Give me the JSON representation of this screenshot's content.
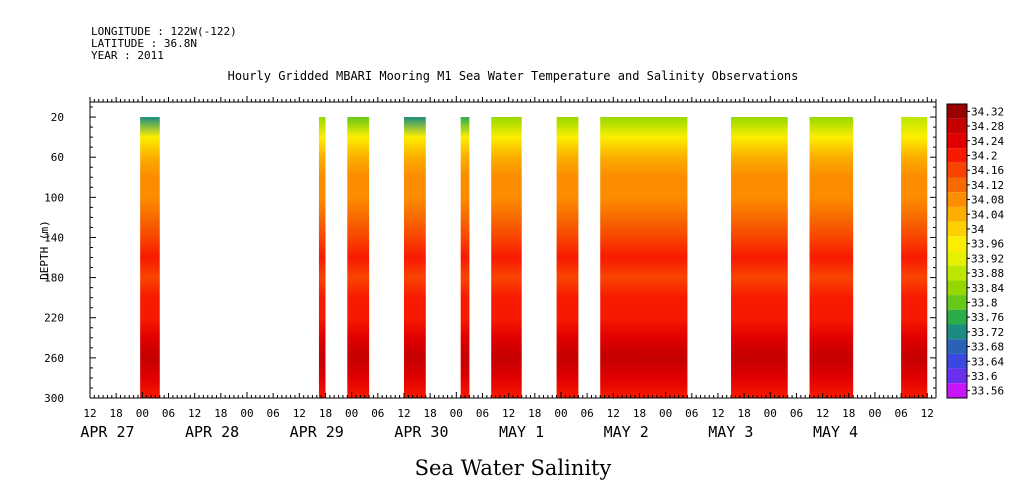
{
  "header": {
    "longitude": "LONGITUDE : 122W(-122)",
    "latitude": "LATITUDE : 36.8N",
    "year": "YEAR : 2011"
  },
  "chart_data": {
    "type": "heatmap",
    "title": "Hourly Gridded MBARI Mooring M1 Sea Water Temperature and Salinity Observations",
    "xlabel": "Sea Water Salinity",
    "ylabel": "DEPTH (m)",
    "y_ticks": [
      20,
      60,
      100,
      140,
      180,
      220,
      260,
      300
    ],
    "ylim": [
      300,
      5
    ],
    "hour_ticks": [
      "12",
      "18",
      "00",
      "06",
      "12",
      "18",
      "00",
      "06",
      "12",
      "18",
      "00",
      "06",
      "12",
      "18",
      "00",
      "06",
      "12",
      "18",
      "00",
      "06",
      "12",
      "18",
      "00",
      "06",
      "12",
      "18",
      "00",
      "06",
      "12",
      "18",
      "00",
      "06",
      "12"
    ],
    "day_labels": [
      "APR 27",
      "APR 28",
      "APR 29",
      "APR 30",
      "MAY  1",
      "MAY  2",
      "MAY  3",
      "MAY  4"
    ],
    "colorbar_labels": [
      "34.32",
      "34.28",
      "34.24",
      "34.2",
      "34.16",
      "34.12",
      "34.08",
      "34.04",
      "34",
      "33.96",
      "33.92",
      "33.88",
      "33.84",
      "33.8",
      "33.76",
      "33.72",
      "33.68",
      "33.64",
      "33.6",
      "33.56"
    ],
    "colorbar_colors": [
      "#9a0000",
      "#c40000",
      "#e00000",
      "#f81a00",
      "#f84400",
      "#f86a00",
      "#fc8c00",
      "#fcae00",
      "#fcd000",
      "#fcee00",
      "#e6f000",
      "#bde600",
      "#94d800",
      "#66c818",
      "#2cad4a",
      "#1c8c80",
      "#2a62b8",
      "#3a48e0",
      "#6a30f0",
      "#c814f8"
    ],
    "segments": [
      {
        "start": "2011-04-26T23:30",
        "end": "2011-04-27T04:00",
        "surface_salinity": 33.7
      },
      {
        "start": "2011-04-28T16:30",
        "end": "2011-04-28T18:00",
        "surface_salinity": 33.82
      },
      {
        "start": "2011-04-28T23:00",
        "end": "2011-04-29T04:00",
        "surface_salinity": 33.78
      },
      {
        "start": "2011-04-29T12:00",
        "end": "2011-04-29T17:00",
        "surface_salinity": 33.72
      },
      {
        "start": "2011-04-30T01:00",
        "end": "2011-04-30T03:00",
        "surface_salinity": 33.74
      },
      {
        "start": "2011-04-30T08:00",
        "end": "2011-04-30T15:00",
        "surface_salinity": 33.82
      },
      {
        "start": "2011-04-30T23:00",
        "end": "2011-05-01T04:00",
        "surface_salinity": 33.84
      },
      {
        "start": "2011-05-01T09:00",
        "end": "2011-05-02T05:00",
        "surface_salinity": 33.86
      },
      {
        "start": "2011-05-02T15:00",
        "end": "2011-05-03T04:00",
        "surface_salinity": 33.84
      },
      {
        "start": "2011-05-03T09:00",
        "end": "2011-05-03T19:00",
        "surface_salinity": 33.86
      },
      {
        "start": "2011-05-04T06:00",
        "end": "2011-05-04T12:00",
        "surface_salinity": 33.88
      }
    ],
    "depth_profile": [
      {
        "depth": 20,
        "salinity": 33.86
      },
      {
        "depth": 40,
        "salinity": 33.96
      },
      {
        "depth": 60,
        "salinity": 34.02
      },
      {
        "depth": 80,
        "salinity": 34.06
      },
      {
        "depth": 100,
        "salinity": 34.08
      },
      {
        "depth": 120,
        "salinity": 34.12
      },
      {
        "depth": 140,
        "salinity": 34.16
      },
      {
        "depth": 160,
        "salinity": 34.18
      },
      {
        "depth": 180,
        "salinity": 34.16
      },
      {
        "depth": 200,
        "salinity": 34.18
      },
      {
        "depth": 220,
        "salinity": 34.22
      },
      {
        "depth": 240,
        "salinity": 34.26
      },
      {
        "depth": 260,
        "salinity": 34.28
      },
      {
        "depth": 280,
        "salinity": 34.24
      },
      {
        "depth": 300,
        "salinity": 34.2
      }
    ]
  }
}
